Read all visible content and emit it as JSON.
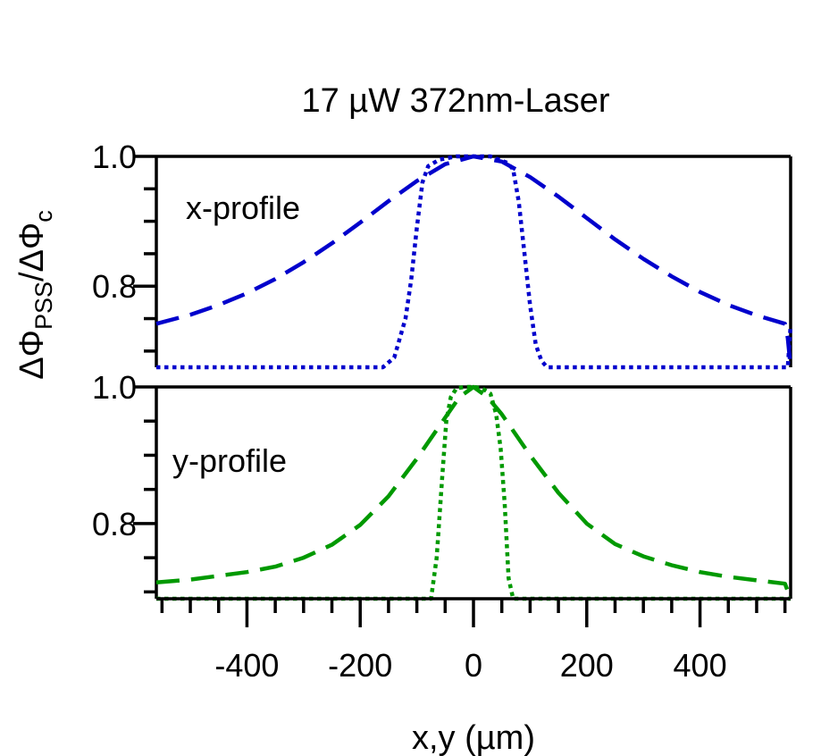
{
  "colors": {
    "x_profile": "#0000cc",
    "y_profile": "#009900",
    "axis": "#000000"
  },
  "chart_data": {
    "type": "line",
    "title": "17 µW 372nm-Laser",
    "xlabel": "x,y (µm)",
    "ylabel": {
      "main": "ΔΦ",
      "sub1": "PSS",
      "mid": "/ΔΦ",
      "sub2": "c"
    },
    "xlim": [
      -560,
      560
    ],
    "xticks": [
      -400,
      -200,
      0,
      200,
      400
    ],
    "xtick_labels": [
      "-400",
      "-200",
      "0",
      "200",
      "400"
    ],
    "x_minor_step": 50,
    "grid": false,
    "panels": [
      {
        "label": "x-profile",
        "ylim": [
          0.675,
          1.0
        ],
        "yticks": [
          0.8,
          1.0
        ],
        "ytick_labels": [
          "0.8",
          "1.0"
        ],
        "y_minor_step": 0.05,
        "series": [
          {
            "style": "dashed",
            "color": "#0000cc",
            "x": [
              -560,
              -500,
              -450,
              -400,
              -350,
              -300,
              -250,
              -200,
              -150,
              -100,
              -50,
              0,
              50,
              100,
              150,
              200,
              250,
              300,
              350,
              400,
              450,
              500,
              550,
              555,
              560
            ],
            "y": [
              0.742,
              0.756,
              0.771,
              0.789,
              0.811,
              0.837,
              0.866,
              0.898,
              0.931,
              0.962,
              0.988,
              1.0,
              0.992,
              0.968,
              0.938,
              0.905,
              0.872,
              0.842,
              0.815,
              0.791,
              0.771,
              0.755,
              0.742,
              0.72,
              0.675
            ]
          },
          {
            "style": "dotted",
            "color": "#0000cc",
            "x": [
              -560,
              -200,
              -160,
              -140,
              -120,
              -110,
              -100,
              -90,
              -80,
              -60,
              -30,
              0,
              30,
              60,
              70,
              80,
              90,
              100,
              110,
              120,
              130,
              200,
              500,
              555,
              560
            ],
            "y": [
              0.675,
              0.675,
              0.675,
              0.69,
              0.75,
              0.81,
              0.89,
              0.96,
              0.985,
              0.995,
              1.0,
              1.0,
              1.0,
              0.99,
              0.98,
              0.93,
              0.85,
              0.77,
              0.71,
              0.685,
              0.675,
              0.675,
              0.675,
              0.675,
              0.74
            ]
          }
        ]
      },
      {
        "label": "y-profile",
        "ylim": [
          0.69,
          1.0
        ],
        "yticks": [
          0.8,
          1.0
        ],
        "ytick_labels": [
          "0.8",
          "1.0"
        ],
        "y_minor_step": 0.05,
        "series": [
          {
            "style": "dashed",
            "color": "#009900",
            "x": [
              -560,
              -500,
              -400,
              -350,
              -300,
              -250,
              -200,
              -150,
              -100,
              -50,
              -25,
              0,
              25,
              50,
              100,
              150,
              200,
              250,
              300,
              350,
              400,
              450,
              500,
              550,
              560
            ],
            "y": [
              0.714,
              0.718,
              0.729,
              0.737,
              0.75,
              0.769,
              0.798,
              0.84,
              0.895,
              0.955,
              0.985,
              1.0,
              0.985,
              0.96,
              0.9,
              0.845,
              0.8,
              0.77,
              0.752,
              0.739,
              0.729,
              0.722,
              0.717,
              0.712,
              0.69
            ]
          },
          {
            "style": "dotted",
            "color": "#009900",
            "x": [
              -560,
              -100,
              -75,
              -65,
              -55,
              -48,
              -40,
              -30,
              -15,
              0,
              15,
              30,
              40,
              48,
              55,
              62,
              70,
              100,
              560
            ],
            "y": [
              0.69,
              0.69,
              0.69,
              0.75,
              0.87,
              0.95,
              0.985,
              0.998,
              1.0,
              1.0,
              0.998,
              0.99,
              0.96,
              0.91,
              0.83,
              0.72,
              0.69,
              0.69,
              0.69
            ]
          }
        ]
      }
    ]
  }
}
